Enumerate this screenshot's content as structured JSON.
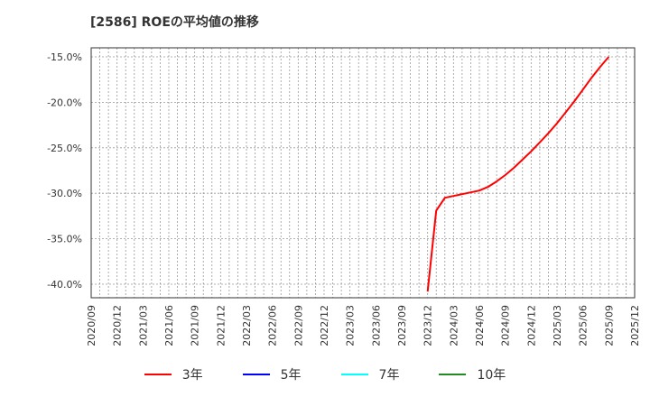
{
  "title": "[2586]  ROEの平均値の推移",
  "legend": [
    {
      "label": "3年",
      "color": "#ff0000"
    },
    {
      "label": "5年",
      "color": "#0000ff"
    },
    {
      "label": "7年",
      "color": "#00ffff"
    },
    {
      "label": "10年",
      "color": "#228b22"
    }
  ],
  "chart_data": {
    "type": "line",
    "title": "[2586]  ROEの平均値の推移",
    "xlabel": "",
    "ylabel": "",
    "ylim": [
      -41.5,
      -14.0
    ],
    "yticks": [
      "-15.0%",
      "-20.0%",
      "-25.0%",
      "-30.0%",
      "-35.0%",
      "-40.0%"
    ],
    "ytick_values": [
      -15,
      -20,
      -25,
      -30,
      -35,
      -40
    ],
    "xticks": [
      "2020/09",
      "2020/12",
      "2021/03",
      "2021/06",
      "2021/09",
      "2021/12",
      "2022/03",
      "2022/06",
      "2022/09",
      "2022/12",
      "2023/03",
      "2023/06",
      "2023/09",
      "2023/12",
      "2024/03",
      "2024/06",
      "2024/09",
      "2024/12",
      "2025/03",
      "2025/06",
      "2025/09",
      "2025/12"
    ],
    "grid": true,
    "legend_position": "bottom",
    "series": [
      {
        "name": "3年",
        "color": "#ff0000",
        "x": [
          "2023/12",
          "2024/01",
          "2024/02",
          "2024/03",
          "2024/04",
          "2024/05",
          "2024/06",
          "2024/07",
          "2024/08",
          "2024/09",
          "2024/10",
          "2024/11",
          "2024/12",
          "2025/01",
          "2025/02",
          "2025/03",
          "2025/04",
          "2025/05",
          "2025/06",
          "2025/07",
          "2025/08",
          "2025/09"
        ],
        "values": [
          -40.8,
          -31.9,
          -30.5,
          -30.3,
          -30.1,
          -29.9,
          -29.7,
          -29.3,
          -28.7,
          -28.0,
          -27.2,
          -26.3,
          -25.4,
          -24.4,
          -23.4,
          -22.3,
          -21.1,
          -19.9,
          -18.6,
          -17.3,
          -16.1,
          -15.0
        ]
      },
      {
        "name": "5年",
        "color": "#0000ff",
        "x": [],
        "values": []
      },
      {
        "name": "7年",
        "color": "#00ffff",
        "x": [],
        "values": []
      },
      {
        "name": "10年",
        "color": "#228b22",
        "x": [],
        "values": []
      }
    ]
  }
}
